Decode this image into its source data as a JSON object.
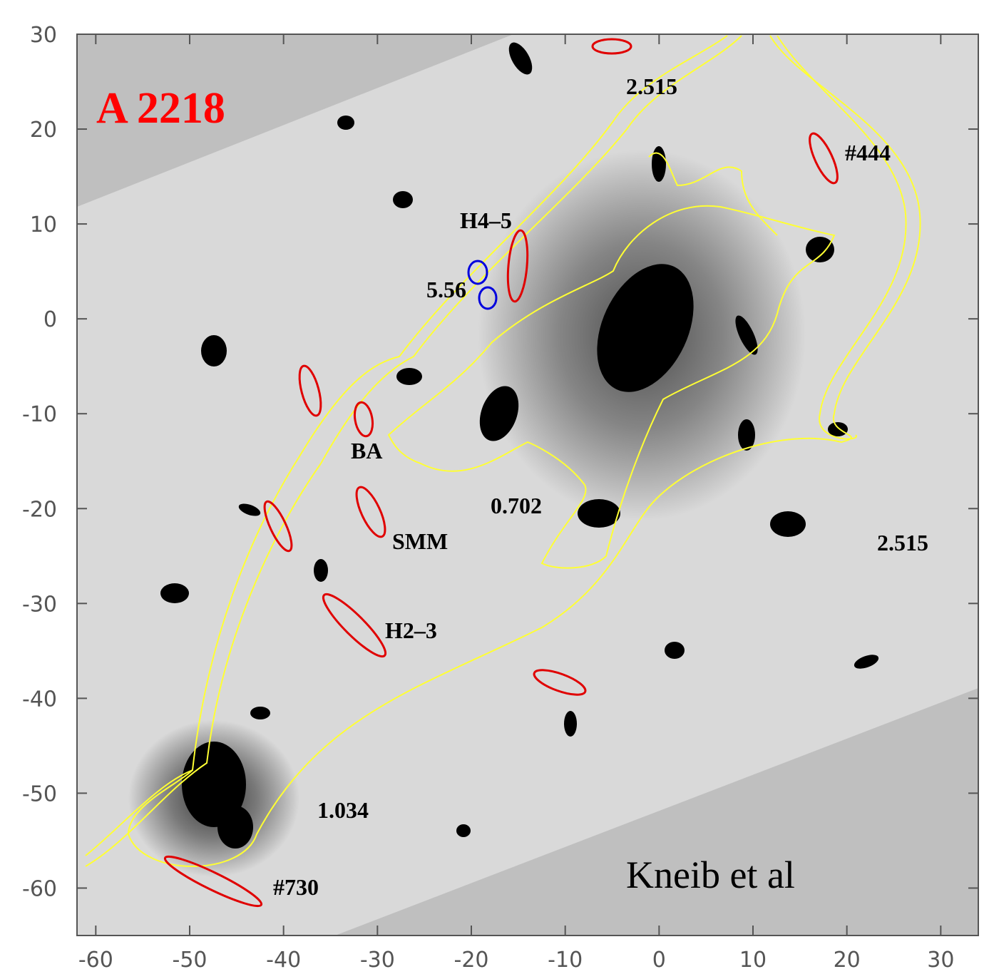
{
  "chart_data": {
    "type": "image",
    "title": "A 2218",
    "xlim": [
      -62,
      34
    ],
    "ylim": [
      -65,
      30
    ],
    "xticks": [
      -60,
      -50,
      -40,
      -30,
      -20,
      -10,
      0,
      10,
      20,
      30
    ],
    "yticks": [
      -60,
      -50,
      -40,
      -30,
      -20,
      -10,
      0,
      10,
      20,
      30
    ],
    "annotations": [
      "2.515",
      "#444",
      "H4–5",
      "5.56",
      "BA",
      "0.702",
      "SMM",
      "2.515",
      "H2–3",
      "1.034",
      "#730"
    ],
    "credit": "Kneib et al"
  }
}
